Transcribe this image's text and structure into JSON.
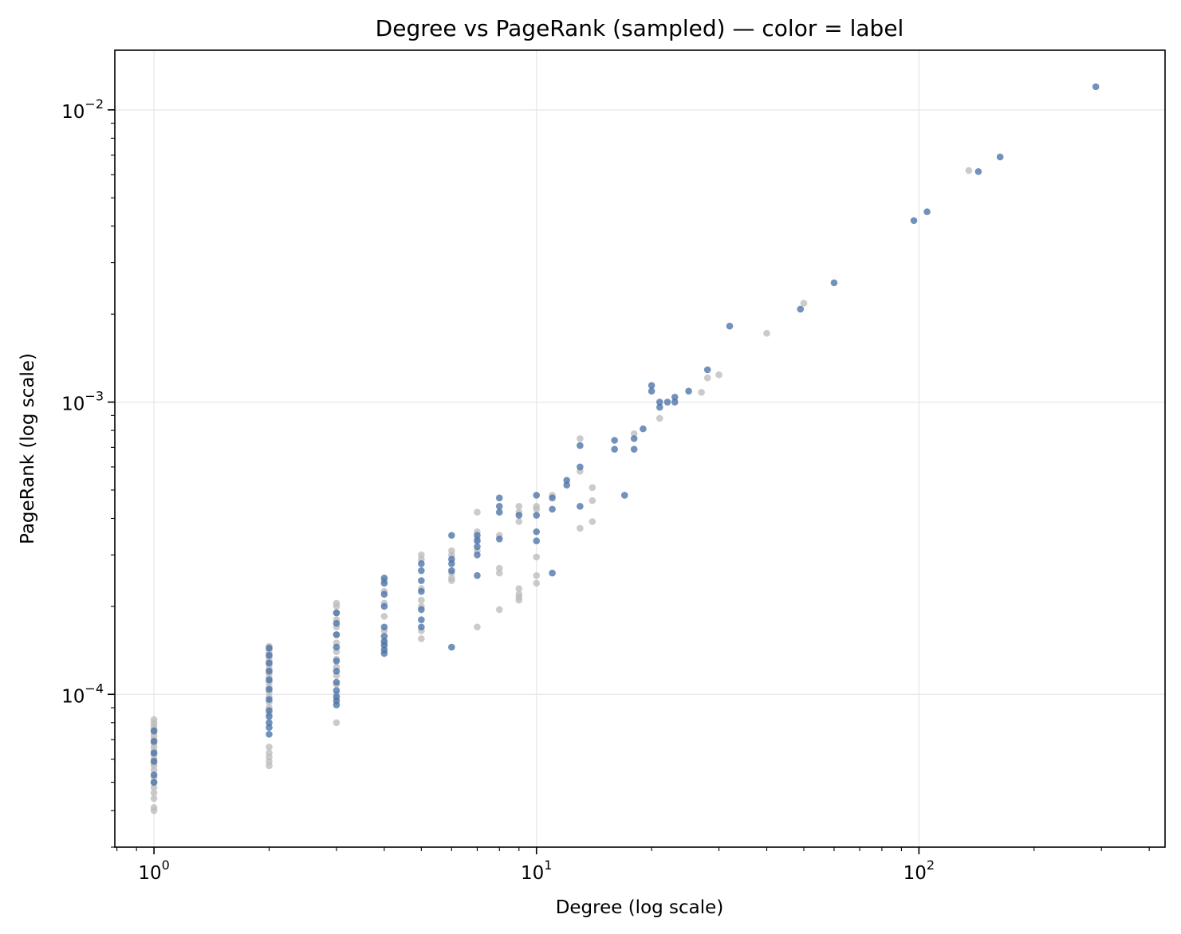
{
  "chart_data": {
    "type": "scatter",
    "title": "Degree vs PageRank (sampled) — color = label",
    "xlabel": "Degree (log scale)",
    "ylabel": "PageRank (log scale)",
    "xscale": "log",
    "yscale": "log",
    "xlim": [
      0.79,
      440
    ],
    "ylim": [
      3e-05,
      0.016
    ],
    "grid": true,
    "legend": false,
    "x_ticks": [
      {
        "value": 1,
        "base": "10",
        "exp": "0"
      },
      {
        "value": 10,
        "base": "10",
        "exp": "1"
      },
      {
        "value": 100,
        "base": "10",
        "exp": "2"
      }
    ],
    "y_ticks": [
      {
        "value": 0.0001,
        "base": "10",
        "exp": "−4"
      },
      {
        "value": 0.001,
        "base": "10",
        "exp": "−3"
      },
      {
        "value": 0.01,
        "base": "10",
        "exp": "−2"
      }
    ],
    "colors": {
      "class_blue": "#4a72a8",
      "class_gray": "#bdbdbd"
    },
    "series": [
      {
        "color": "#bdbdbd",
        "points": [
          [
            1,
            4e-05
          ],
          [
            1,
            4.1e-05
          ],
          [
            1,
            4.4e-05
          ],
          [
            1,
            4.6e-05
          ],
          [
            1,
            4.8e-05
          ],
          [
            1,
            5e-05
          ],
          [
            1,
            5.2e-05
          ],
          [
            1,
            5.5e-05
          ],
          [
            1,
            5.7e-05
          ],
          [
            1,
            5.8e-05
          ],
          [
            1,
            6e-05
          ],
          [
            1,
            6.2e-05
          ],
          [
            1,
            6.4e-05
          ],
          [
            1,
            6.6e-05
          ],
          [
            1,
            6.8e-05
          ],
          [
            1,
            7e-05
          ],
          [
            1,
            7.2e-05
          ],
          [
            1,
            7.4e-05
          ],
          [
            1,
            7.6e-05
          ],
          [
            1,
            7.8e-05
          ],
          [
            1,
            8e-05
          ],
          [
            1,
            8.2e-05
          ],
          [
            2,
            5.7e-05
          ],
          [
            2,
            5.9e-05
          ],
          [
            2,
            6.1e-05
          ],
          [
            2,
            6.3e-05
          ],
          [
            2,
            6.6e-05
          ],
          [
            2,
            8.6e-05
          ],
          [
            2,
            9e-05
          ],
          [
            2,
            9.4e-05
          ],
          [
            2,
            9.8e-05
          ],
          [
            2,
            0.000102
          ],
          [
            2,
            0.000106
          ],
          [
            2,
            0.00011
          ],
          [
            2,
            0.000114
          ],
          [
            2,
            0.000118
          ],
          [
            2,
            0.000122
          ],
          [
            2,
            0.000126
          ],
          [
            2,
            0.00013
          ],
          [
            2,
            0.000134
          ],
          [
            2,
            0.000138
          ],
          [
            2,
            0.000142
          ],
          [
            2,
            0.000146
          ],
          [
            3,
            8e-05
          ],
          [
            3,
            0.0001
          ],
          [
            3,
            0.000108
          ],
          [
            3,
            0.000116
          ],
          [
            3,
            0.000124
          ],
          [
            3,
            0.000132
          ],
          [
            3,
            0.00014
          ],
          [
            3,
            0.00015
          ],
          [
            3,
            0.00016
          ],
          [
            3,
            0.00017
          ],
          [
            3,
            0.00018
          ],
          [
            3,
            0.00019
          ],
          [
            3,
            0.0002
          ],
          [
            3,
            0.000205
          ],
          [
            4,
            0.00015
          ],
          [
            4,
            0.000165
          ],
          [
            4,
            0.000185
          ],
          [
            4,
            0.000205
          ],
          [
            4,
            0.000225
          ],
          [
            4,
            0.000245
          ],
          [
            5,
            0.000155
          ],
          [
            5,
            0.000165
          ],
          [
            5,
            0.0002
          ],
          [
            5,
            0.00021
          ],
          [
            5,
            0.00023
          ],
          [
            5,
            0.00029
          ],
          [
            5,
            0.0003
          ],
          [
            6,
            0.000245
          ],
          [
            6,
            0.00025
          ],
          [
            6,
            0.00026
          ],
          [
            6,
            0.0003
          ],
          [
            6,
            0.00031
          ],
          [
            7,
            0.00017
          ],
          [
            7,
            0.00031
          ],
          [
            7,
            0.00034
          ],
          [
            7,
            0.00036
          ],
          [
            7,
            0.00042
          ],
          [
            8,
            0.000195
          ],
          [
            8,
            0.00026
          ],
          [
            8,
            0.00027
          ],
          [
            8,
            0.00035
          ],
          [
            9,
            0.00021
          ],
          [
            9,
            0.000215
          ],
          [
            9,
            0.00022
          ],
          [
            9,
            0.00023
          ],
          [
            9,
            0.00039
          ],
          [
            9,
            0.00042
          ],
          [
            9,
            0.00044
          ],
          [
            10,
            0.00024
          ],
          [
            10,
            0.000255
          ],
          [
            10,
            0.000295
          ],
          [
            10,
            0.00043
          ],
          [
            10,
            0.00044
          ],
          [
            11,
            0.00048
          ],
          [
            13,
            0.00037
          ],
          [
            13,
            0.00058
          ],
          [
            13,
            0.00075
          ],
          [
            14,
            0.00039
          ],
          [
            14,
            0.00046
          ],
          [
            14,
            0.00051
          ],
          [
            18,
            0.00078
          ],
          [
            21,
            0.00088
          ],
          [
            27,
            0.00108
          ],
          [
            28,
            0.00121
          ],
          [
            30,
            0.00124
          ],
          [
            40,
            0.00172
          ],
          [
            50,
            0.00218
          ],
          [
            135,
            0.0062
          ]
        ]
      },
      {
        "color": "#4a72a8",
        "points": [
          [
            1,
            5e-05
          ],
          [
            1,
            5.3e-05
          ],
          [
            1,
            5.9e-05
          ],
          [
            1,
            6.3e-05
          ],
          [
            1,
            6.9e-05
          ],
          [
            1,
            7.5e-05
          ],
          [
            2,
            7.3e-05
          ],
          [
            2,
            7.7e-05
          ],
          [
            2,
            8e-05
          ],
          [
            2,
            8.4e-05
          ],
          [
            2,
            8.8e-05
          ],
          [
            2,
            9.6e-05
          ],
          [
            2,
            0.000104
          ],
          [
            2,
            0.000112
          ],
          [
            2,
            0.00012
          ],
          [
            2,
            0.000128
          ],
          [
            2,
            0.000136
          ],
          [
            2,
            0.000144
          ],
          [
            3,
            9.2e-05
          ],
          [
            3,
            9.5e-05
          ],
          [
            3,
            9.8e-05
          ],
          [
            3,
            0.000103
          ],
          [
            3,
            0.00011
          ],
          [
            3,
            0.00012
          ],
          [
            3,
            0.00013
          ],
          [
            3,
            0.000145
          ],
          [
            3,
            0.00016
          ],
          [
            3,
            0.000175
          ],
          [
            3,
            0.00019
          ],
          [
            4,
            0.000138
          ],
          [
            4,
            0.000142
          ],
          [
            4,
            0.000147
          ],
          [
            4,
            0.000152
          ],
          [
            4,
            0.000158
          ],
          [
            4,
            0.00017
          ],
          [
            4,
            0.0002
          ],
          [
            4,
            0.00022
          ],
          [
            4,
            0.00024
          ],
          [
            4,
            0.00025
          ],
          [
            5,
            0.00017
          ],
          [
            5,
            0.00018
          ],
          [
            5,
            0.000195
          ],
          [
            5,
            0.000225
          ],
          [
            5,
            0.000245
          ],
          [
            5,
            0.000265
          ],
          [
            5,
            0.00028
          ],
          [
            6,
            0.000145
          ],
          [
            6,
            0.000265
          ],
          [
            6,
            0.00028
          ],
          [
            6,
            0.00029
          ],
          [
            6,
            0.00035
          ],
          [
            7,
            0.000255
          ],
          [
            7,
            0.0003
          ],
          [
            7,
            0.00032
          ],
          [
            7,
            0.000335
          ],
          [
            7,
            0.00035
          ],
          [
            8,
            0.00034
          ],
          [
            8,
            0.00042
          ],
          [
            8,
            0.00044
          ],
          [
            8,
            0.00047
          ],
          [
            9,
            0.00041
          ],
          [
            10,
            0.000335
          ],
          [
            10,
            0.00036
          ],
          [
            10,
            0.00041
          ],
          [
            10,
            0.00048
          ],
          [
            11,
            0.00026
          ],
          [
            11,
            0.00043
          ],
          [
            11,
            0.00047
          ],
          [
            12,
            0.00052
          ],
          [
            12,
            0.00054
          ],
          [
            13,
            0.00044
          ],
          [
            13,
            0.0006
          ],
          [
            13,
            0.00071
          ],
          [
            16,
            0.00069
          ],
          [
            16,
            0.00074
          ],
          [
            17,
            0.00048
          ],
          [
            18,
            0.00069
          ],
          [
            18,
            0.00075
          ],
          [
            19,
            0.00081
          ],
          [
            20,
            0.00109
          ],
          [
            20,
            0.00114
          ],
          [
            21,
            0.00096
          ],
          [
            21,
            0.001
          ],
          [
            22,
            0.001
          ],
          [
            23,
            0.001
          ],
          [
            23,
            0.00104
          ],
          [
            25,
            0.00109
          ],
          [
            28,
            0.00129
          ],
          [
            32,
            0.00182
          ],
          [
            49,
            0.00208
          ],
          [
            60,
            0.00256
          ],
          [
            97,
            0.00418
          ],
          [
            105,
            0.00448
          ],
          [
            143,
            0.00615
          ],
          [
            163,
            0.0069
          ],
          [
            290,
            0.012
          ]
        ]
      }
    ]
  }
}
